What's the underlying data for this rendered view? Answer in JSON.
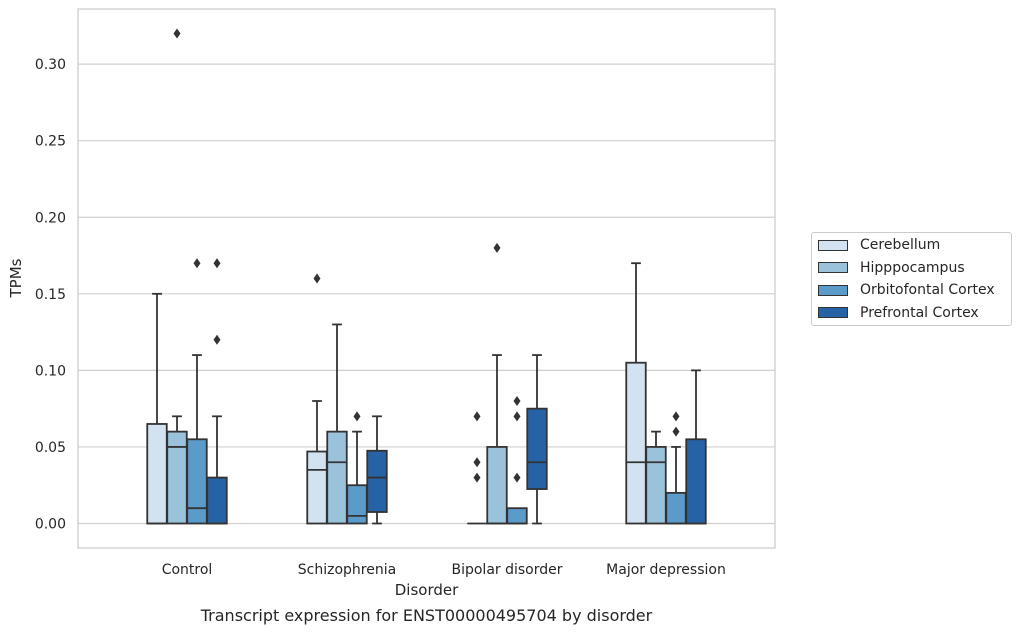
{
  "chart_data": {
    "type": "box",
    "xlabel": "Disorder",
    "ylabel": "TPMs",
    "caption": "Transcript expression for ENST00000495704 by disorder",
    "categories": [
      "Control",
      "Schizophrenia",
      "Bipolar disorder",
      "Major depression"
    ],
    "ylim": [
      -0.016,
      0.336
    ],
    "yticks": [
      "0.00",
      "0.05",
      "0.10",
      "0.15",
      "0.20",
      "0.25",
      "0.30"
    ],
    "grid": "horizontal",
    "legend_position": "right",
    "series": [
      {
        "name": "Cerebellum",
        "color": "#d2e2f0",
        "boxes": [
          {
            "category": "Control",
            "whisker_low": 0.0,
            "q1": 0.0,
            "median": 0.0,
            "q3": 0.065,
            "whisker_high": 0.15,
            "outliers": []
          },
          {
            "category": "Schizophrenia",
            "whisker_low": 0.0,
            "q1": 0.0,
            "median": 0.035,
            "q3": 0.047,
            "whisker_high": 0.08,
            "outliers": [
              0.16
            ]
          },
          {
            "category": "Bipolar disorder",
            "whisker_low": 0.0,
            "q1": 0.0,
            "median": 0.0,
            "q3": 0.0,
            "whisker_high": 0.0,
            "outliers": []
          },
          {
            "category": "Major depression",
            "whisker_low": 0.0,
            "q1": 0.0,
            "median": 0.04,
            "q3": 0.105,
            "whisker_high": 0.17,
            "outliers": []
          }
        ]
      },
      {
        "name": "Hipppocampus",
        "color": "#9ac3db",
        "boxes": [
          {
            "category": "Control",
            "whisker_low": 0.0,
            "q1": 0.0,
            "median": 0.05,
            "q3": 0.06,
            "whisker_high": 0.07,
            "outliers": [
              0.32
            ]
          },
          {
            "category": "Schizophrenia",
            "whisker_low": 0.0,
            "q1": 0.0,
            "median": 0.04,
            "q3": 0.06,
            "whisker_high": 0.13,
            "outliers": []
          },
          {
            "category": "Bipolar disorder",
            "whisker_low": 0.0,
            "q1": 0.0,
            "median": 0.0,
            "q3": 0.05,
            "whisker_high": 0.11,
            "outliers": [
              0.18
            ]
          },
          {
            "category": "Major depression",
            "whisker_low": 0.0,
            "q1": 0.0,
            "median": 0.04,
            "q3": 0.05,
            "whisker_high": 0.06,
            "outliers": []
          }
        ]
      },
      {
        "name": "Orbitofontal Cortex",
        "color": "#5b9bc9",
        "boxes": [
          {
            "category": "Control",
            "whisker_low": 0.0,
            "q1": 0.0,
            "median": 0.01,
            "q3": 0.055,
            "whisker_high": 0.11,
            "outliers": [
              0.17
            ]
          },
          {
            "category": "Schizophrenia",
            "whisker_low": 0.0,
            "q1": 0.0,
            "median": 0.005,
            "q3": 0.025,
            "whisker_high": 0.06,
            "outliers": [
              0.07
            ]
          },
          {
            "category": "Bipolar disorder",
            "whisker_low": 0.0,
            "q1": 0.0,
            "median": 0.0,
            "q3": 0.01,
            "whisker_high": 0.01,
            "outliers": [
              0.03,
              0.07,
              0.08
            ]
          },
          {
            "category": "Major depression",
            "whisker_low": 0.0,
            "q1": 0.0,
            "median": 0.0,
            "q3": 0.02,
            "whisker_high": 0.05,
            "outliers": [
              0.06,
              0.07
            ]
          }
        ]
      },
      {
        "name": "Prefrontal Cortex",
        "color": "#2563a6",
        "boxes": [
          {
            "category": "Control",
            "whisker_low": 0.0,
            "q1": 0.0,
            "median": 0.0,
            "q3": 0.03,
            "whisker_high": 0.07,
            "outliers": [
              0.12,
              0.17
            ]
          },
          {
            "category": "Schizophrenia",
            "whisker_low": 0.0,
            "q1": 0.0075,
            "median": 0.03,
            "q3": 0.0475,
            "whisker_high": 0.07,
            "outliers": []
          },
          {
            "category": "Bipolar disorder",
            "whisker_low": 0.0,
            "q1": 0.0225,
            "median": 0.04,
            "q3": 0.075,
            "whisker_high": 0.11,
            "outliers": []
          },
          {
            "category": "Major depression",
            "whisker_low": 0.0,
            "q1": 0.0,
            "median": 0.0,
            "q3": 0.055,
            "whisker_high": 0.1,
            "outliers": []
          }
        ]
      }
    ],
    "extra_outliers": [
      {
        "category": "Bipolar disorder",
        "series": "Cerebellum",
        "values": [
          0.03,
          0.04,
          0.07
        ]
      }
    ]
  }
}
